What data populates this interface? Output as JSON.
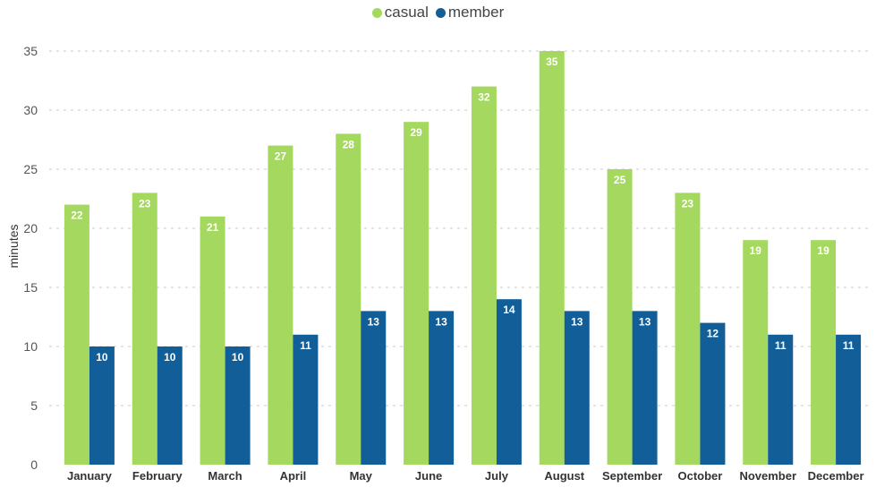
{
  "chart_data": {
    "type": "bar",
    "ylabel": "minutes",
    "ylim": [
      0,
      35
    ],
    "yticks": [
      0,
      5,
      10,
      15,
      20,
      25,
      30,
      35
    ],
    "grid": true,
    "legend_position": "top-center",
    "categories": [
      "January",
      "February",
      "March",
      "April",
      "May",
      "June",
      "July",
      "August",
      "September",
      "October",
      "November",
      "December"
    ],
    "series": [
      {
        "name": "casual",
        "color": "#a5d85e",
        "values": [
          22,
          23,
          21,
          27,
          28,
          29,
          32,
          35,
          25,
          23,
          19,
          19
        ]
      },
      {
        "name": "member",
        "color": "#125e99",
        "values": [
          10,
          10,
          10,
          11,
          13,
          13,
          14,
          13,
          13,
          12,
          11,
          11
        ]
      }
    ]
  }
}
